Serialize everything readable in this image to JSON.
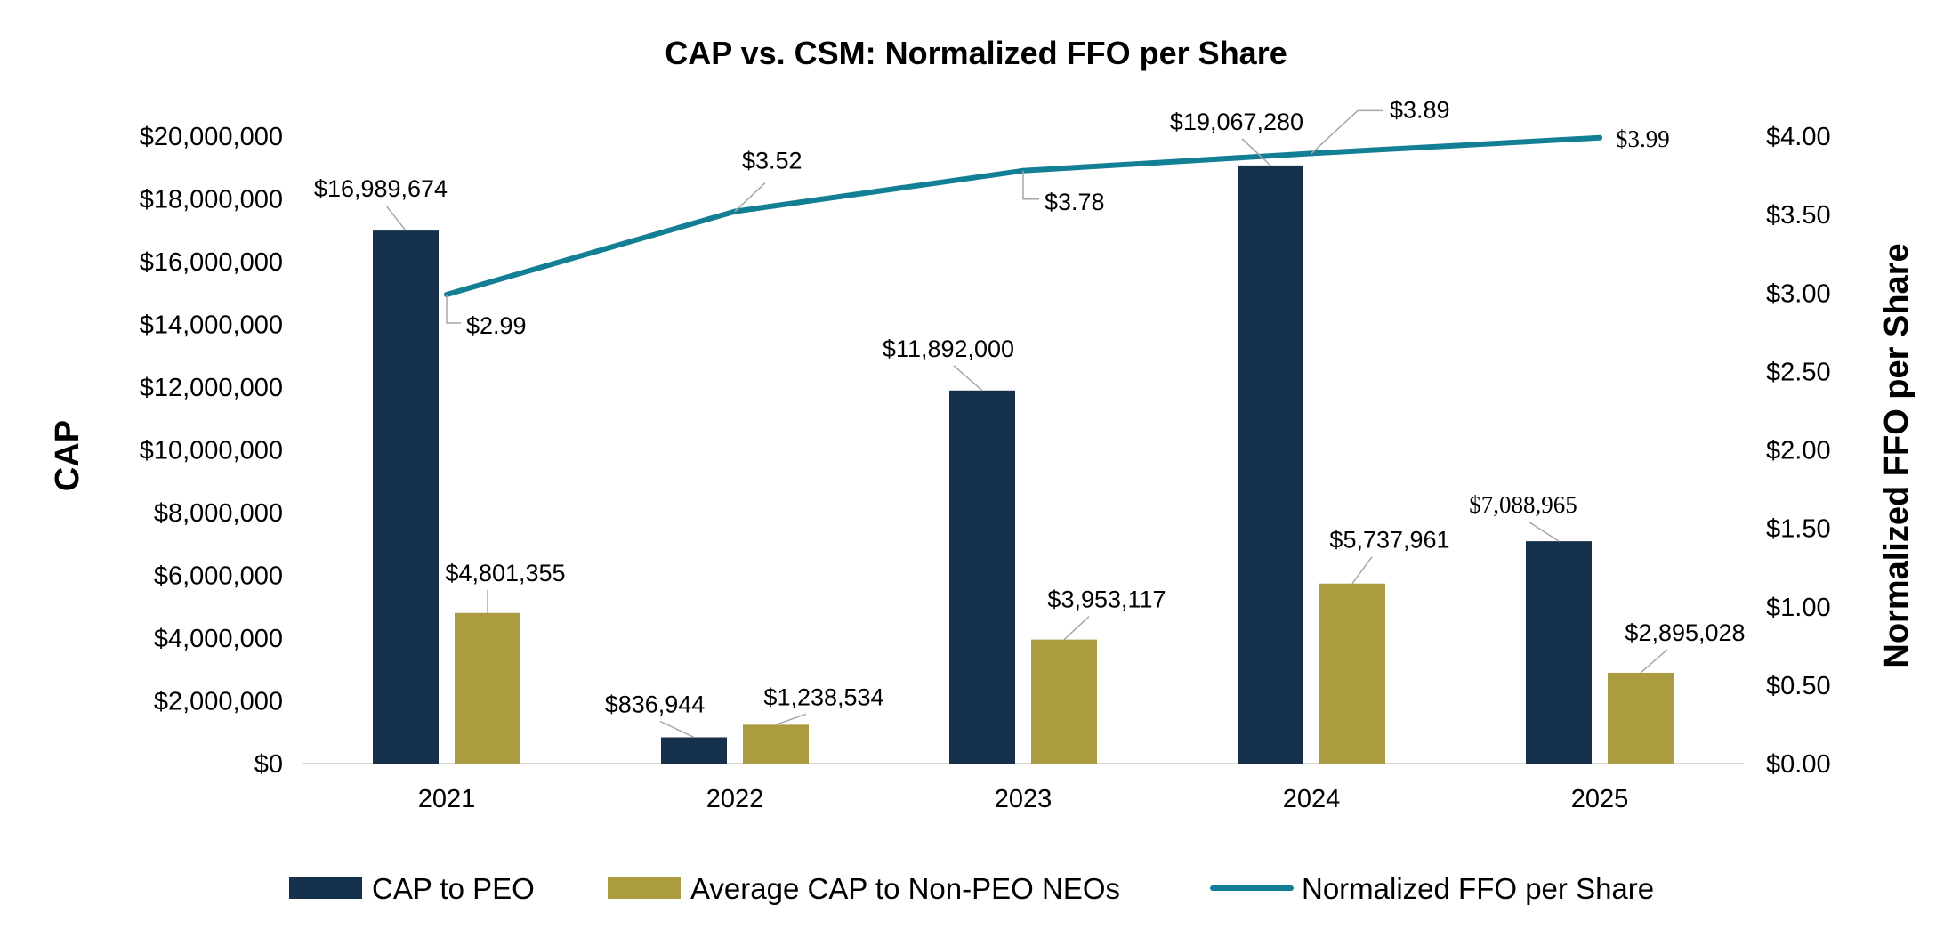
{
  "chart_data": {
    "type": "bar",
    "title": "CAP vs. CSM: Normalized FFO per Share",
    "categories": [
      "2021",
      "2022",
      "2023",
      "2024",
      "2025"
    ],
    "ylabel": "CAP",
    "y2label": "Normalized FFO per Share",
    "ylim": [
      0,
      20000000
    ],
    "y2lim": [
      0,
      4.0
    ],
    "yticks": [
      "$0",
      "$2,000,000",
      "$4,000,000",
      "$6,000,000",
      "$8,000,000",
      "$10,000,000",
      "$12,000,000",
      "$14,000,000",
      "$16,000,000",
      "$18,000,000",
      "$20,000,000"
    ],
    "y2ticks": [
      "$0.00",
      "$0.50",
      "$1.00",
      "$1.50",
      "$2.00",
      "$2.50",
      "$3.00",
      "$3.50",
      "$4.00"
    ],
    "legend_position": "bottom",
    "series": [
      {
        "name": "CAP to PEO",
        "type": "bar",
        "axis": "left",
        "color": "#15304a",
        "values": [
          16989674,
          836944,
          11892000,
          19067280,
          7088965
        ],
        "labels": [
          "$16,989,674",
          "$836,944",
          "$11,892,000",
          "$19,067,280",
          "$7,088,965"
        ]
      },
      {
        "name": "Average CAP to Non-PEO NEOs",
        "type": "bar",
        "axis": "left",
        "color": "#ab9c3f",
        "values": [
          4801355,
          1238534,
          3953117,
          5737961,
          2895028
        ],
        "labels": [
          "$4,801,355",
          "$1,238,534",
          "$3,953,117",
          "$5,737,961",
          "$2,895,028"
        ]
      },
      {
        "name": "Normalized FFO per Share",
        "type": "line",
        "axis": "right",
        "color": "#137f94",
        "values": [
          2.99,
          3.52,
          3.78,
          3.89,
          3.99
        ],
        "labels": [
          "$2.99",
          "$3.52",
          "$3.78",
          "$3.89",
          "$3.99"
        ]
      }
    ]
  }
}
